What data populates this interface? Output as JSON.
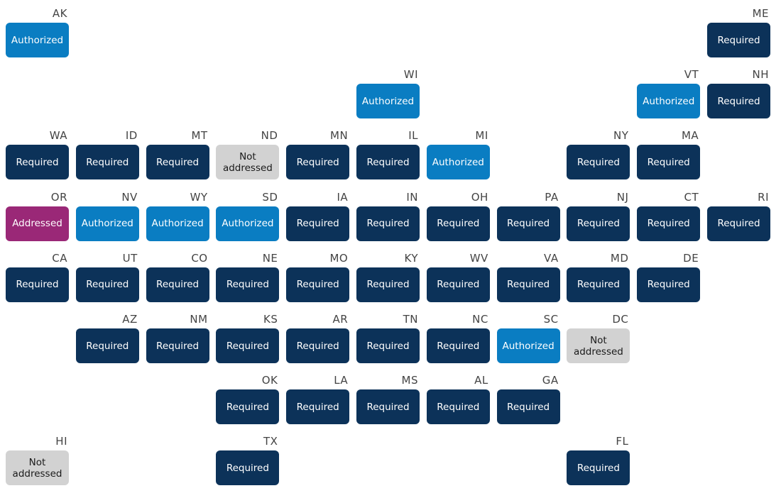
{
  "tiles": [
    {
      "state": "AK",
      "status": "Authorized",
      "color": "#0a7dc2"
    },
    {
      "state": "ME",
      "status": "Required",
      "color": "#0c3259"
    },
    {
      "state": "WI",
      "status": "Authorized",
      "color": "#0a7dc2"
    },
    {
      "state": "VT",
      "status": "Authorized",
      "color": "#0a7dc2"
    },
    {
      "state": "NH",
      "status": "Required",
      "color": "#0c3259"
    },
    {
      "state": "WA",
      "status": "Required",
      "color": "#0c3259"
    },
    {
      "state": "ID",
      "status": "Required",
      "color": "#0c3259"
    },
    {
      "state": "MT",
      "status": "Required",
      "color": "#0c3259"
    },
    {
      "state": "ND",
      "status": "Not addressed",
      "color": "#d2d2d2"
    },
    {
      "state": "MN",
      "status": "Required",
      "color": "#0c3259"
    },
    {
      "state": "IL",
      "status": "Required",
      "color": "#0c3259"
    },
    {
      "state": "MI",
      "status": "Authorized",
      "color": "#0a7dc2"
    },
    {
      "state": "NY",
      "status": "Required",
      "color": "#0c3259"
    },
    {
      "state": "MA",
      "status": "Required",
      "color": "#0c3259"
    },
    {
      "state": "OR",
      "status": "Addressed",
      "color": "#9a2877"
    },
    {
      "state": "NV",
      "status": "Authorized",
      "color": "#0a7dc2"
    },
    {
      "state": "WY",
      "status": "Authorized",
      "color": "#0a7dc2"
    },
    {
      "state": "SD",
      "status": "Authorized",
      "color": "#0a7dc2"
    },
    {
      "state": "IA",
      "status": "Required",
      "color": "#0c3259"
    },
    {
      "state": "IN",
      "status": "Required",
      "color": "#0c3259"
    },
    {
      "state": "OH",
      "status": "Required",
      "color": "#0c3259"
    },
    {
      "state": "PA",
      "status": "Required",
      "color": "#0c3259"
    },
    {
      "state": "NJ",
      "status": "Required",
      "color": "#0c3259"
    },
    {
      "state": "CT",
      "status": "Required",
      "color": "#0c3259"
    },
    {
      "state": "RI",
      "status": "Required",
      "color": "#0c3259"
    },
    {
      "state": "CA",
      "status": "Required",
      "color": "#0c3259"
    },
    {
      "state": "UT",
      "status": "Required",
      "color": "#0c3259"
    },
    {
      "state": "CO",
      "status": "Required",
      "color": "#0c3259"
    },
    {
      "state": "NE",
      "status": "Required",
      "color": "#0c3259"
    },
    {
      "state": "MO",
      "status": "Required",
      "color": "#0c3259"
    },
    {
      "state": "KY",
      "status": "Required",
      "color": "#0c3259"
    },
    {
      "state": "WV",
      "status": "Required",
      "color": "#0c3259"
    },
    {
      "state": "VA",
      "status": "Required",
      "color": "#0c3259"
    },
    {
      "state": "MD",
      "status": "Required",
      "color": "#0c3259"
    },
    {
      "state": "DE",
      "status": "Required",
      "color": "#0c3259"
    },
    {
      "state": "AZ",
      "status": "Required",
      "color": "#0c3259"
    },
    {
      "state": "NM",
      "status": "Required",
      "color": "#0c3259"
    },
    {
      "state": "KS",
      "status": "Required",
      "color": "#0c3259"
    },
    {
      "state": "AR",
      "status": "Required",
      "color": "#0c3259"
    },
    {
      "state": "TN",
      "status": "Required",
      "color": "#0c3259"
    },
    {
      "state": "NC",
      "status": "Required",
      "color": "#0c3259"
    },
    {
      "state": "SC",
      "status": "Authorized",
      "color": "#0a7dc2"
    },
    {
      "state": "DC",
      "status": "Not addressed",
      "color": "#d2d2d2"
    },
    {
      "state": "OK",
      "status": "Required",
      "color": "#0c3259"
    },
    {
      "state": "LA",
      "status": "Required",
      "color": "#0c3259"
    },
    {
      "state": "MS",
      "status": "Required",
      "color": "#0c3259"
    },
    {
      "state": "AL",
      "status": "Required",
      "color": "#0c3259"
    },
    {
      "state": "GA",
      "status": "Required",
      "color": "#0c3259"
    },
    {
      "state": "HI",
      "status": "Not addressed",
      "color": "#d2d2d2"
    },
    {
      "state": "TX",
      "status": "Required",
      "color": "#0c3259"
    },
    {
      "state": "FL",
      "status": "Required",
      "color": "#0c3259"
    }
  ]
}
